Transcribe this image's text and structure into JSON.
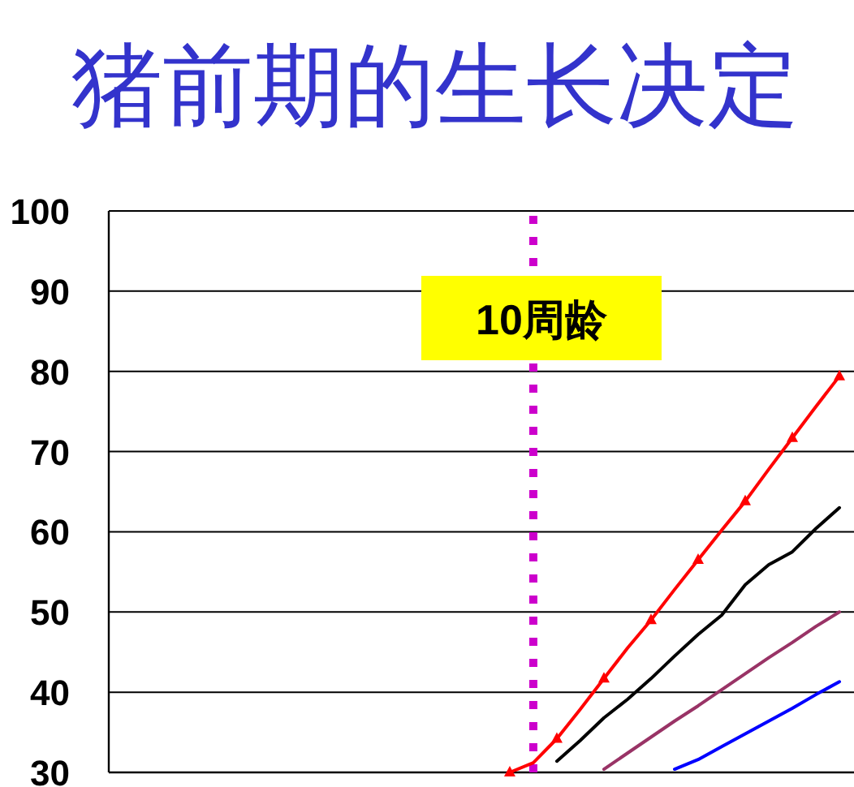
{
  "chart_data": {
    "type": "line",
    "title": "猪前期的生长决定",
    "categories": [
      null,
      null,
      null,
      null,
      null,
      null,
      null,
      null,
      null,
      null,
      null,
      null,
      null,
      null,
      null,
      null,
      null,
      null,
      null,
      null,
      null,
      null,
      null,
      null,
      null,
      null,
      null,
      null,
      null,
      null,
      null,
      null
    ],
    "series": [
      {
        "color": "#ff0000",
        "marker": "triangle",
        "values": [
          null,
          null,
          null,
          null,
          null,
          null,
          null,
          null,
          null,
          null,
          null,
          null,
          null,
          null,
          null,
          null,
          null,
          30.0,
          31.2,
          34.2,
          37.9,
          41.7,
          45.5,
          49.0,
          52.8,
          56.5,
          60.2,
          63.8,
          67.8,
          71.7,
          75.6,
          79.4
        ]
      },
      {
        "color": "#000000",
        "values": [
          null,
          null,
          null,
          null,
          null,
          null,
          null,
          null,
          null,
          null,
          null,
          null,
          null,
          null,
          null,
          null,
          null,
          null,
          null,
          31.4,
          34.0,
          36.8,
          39.1,
          41.7,
          44.5,
          47.2,
          49.6,
          53.4,
          55.9,
          57.5,
          60.4,
          63.0
        ]
      },
      {
        "color": "#993366",
        "values": [
          null,
          null,
          null,
          null,
          null,
          null,
          null,
          null,
          null,
          null,
          null,
          null,
          null,
          null,
          null,
          null,
          null,
          null,
          null,
          null,
          null,
          30.4,
          32.4,
          34.4,
          36.4,
          38.3,
          40.3,
          42.3,
          44.3,
          46.2,
          48.2,
          50.0
        ]
      },
      {
        "color": "#0000ff",
        "values": [
          null,
          null,
          null,
          null,
          null,
          null,
          null,
          null,
          null,
          null,
          null,
          null,
          null,
          null,
          null,
          null,
          null,
          null,
          null,
          null,
          null,
          null,
          null,
          null,
          30.4,
          31.6,
          33.2,
          34.8,
          36.4,
          38.0,
          39.7,
          41.3
        ]
      }
    ],
    "ylim": [
      30,
      100
    ],
    "yticks": [
      30,
      40,
      50,
      60,
      70,
      80,
      90,
      100
    ],
    "grid": "y",
    "tick_labels": "y",
    "annotations": [
      "10周龄"
    ]
  }
}
